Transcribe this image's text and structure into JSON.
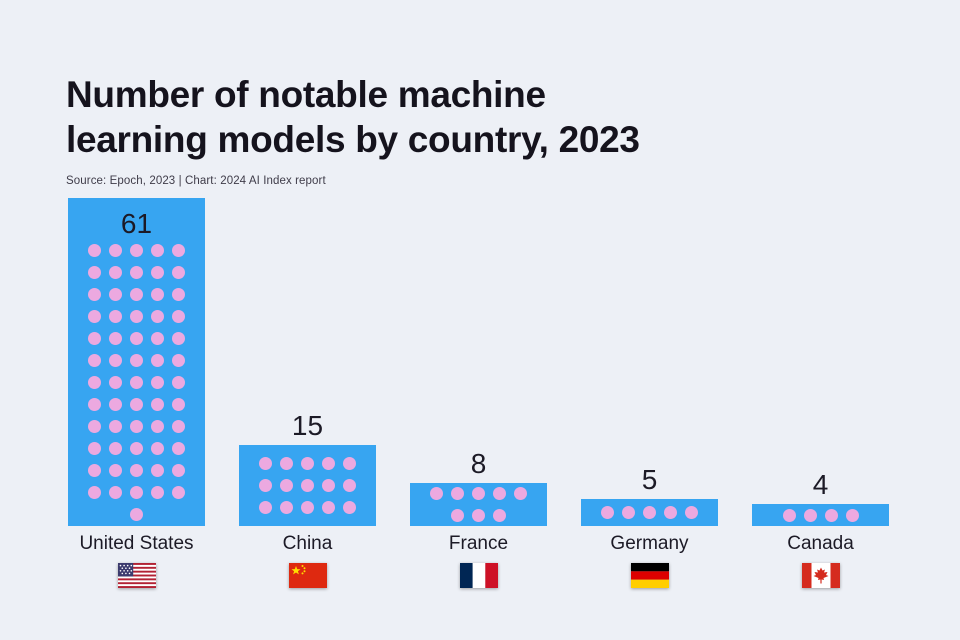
{
  "header": {
    "title_line1": "Number of notable machine",
    "title_line2": "learning models by country, 2023",
    "source": "Source: Epoch, 2023 | Chart: 2024 AI Index report"
  },
  "chart_data": {
    "type": "bar",
    "title": "Number of notable machine learning models by country, 2023",
    "categories": [
      "United States",
      "China",
      "France",
      "Germany",
      "Canada"
    ],
    "values": [
      61,
      15,
      8,
      5,
      4
    ],
    "xlabel": "",
    "ylabel": "",
    "ylim": [
      0,
      61
    ],
    "grid": false,
    "legend": false,
    "dots_per_row": 5,
    "flag_icons": [
      "us-flag-icon",
      "china-flag-icon",
      "france-flag-icon",
      "germany-flag-icon",
      "canada-flag-icon"
    ]
  },
  "colors": {
    "background": "#edf0f6",
    "bar": "#37a5f1",
    "dot": "#eca9e0",
    "text": "#15131d"
  }
}
